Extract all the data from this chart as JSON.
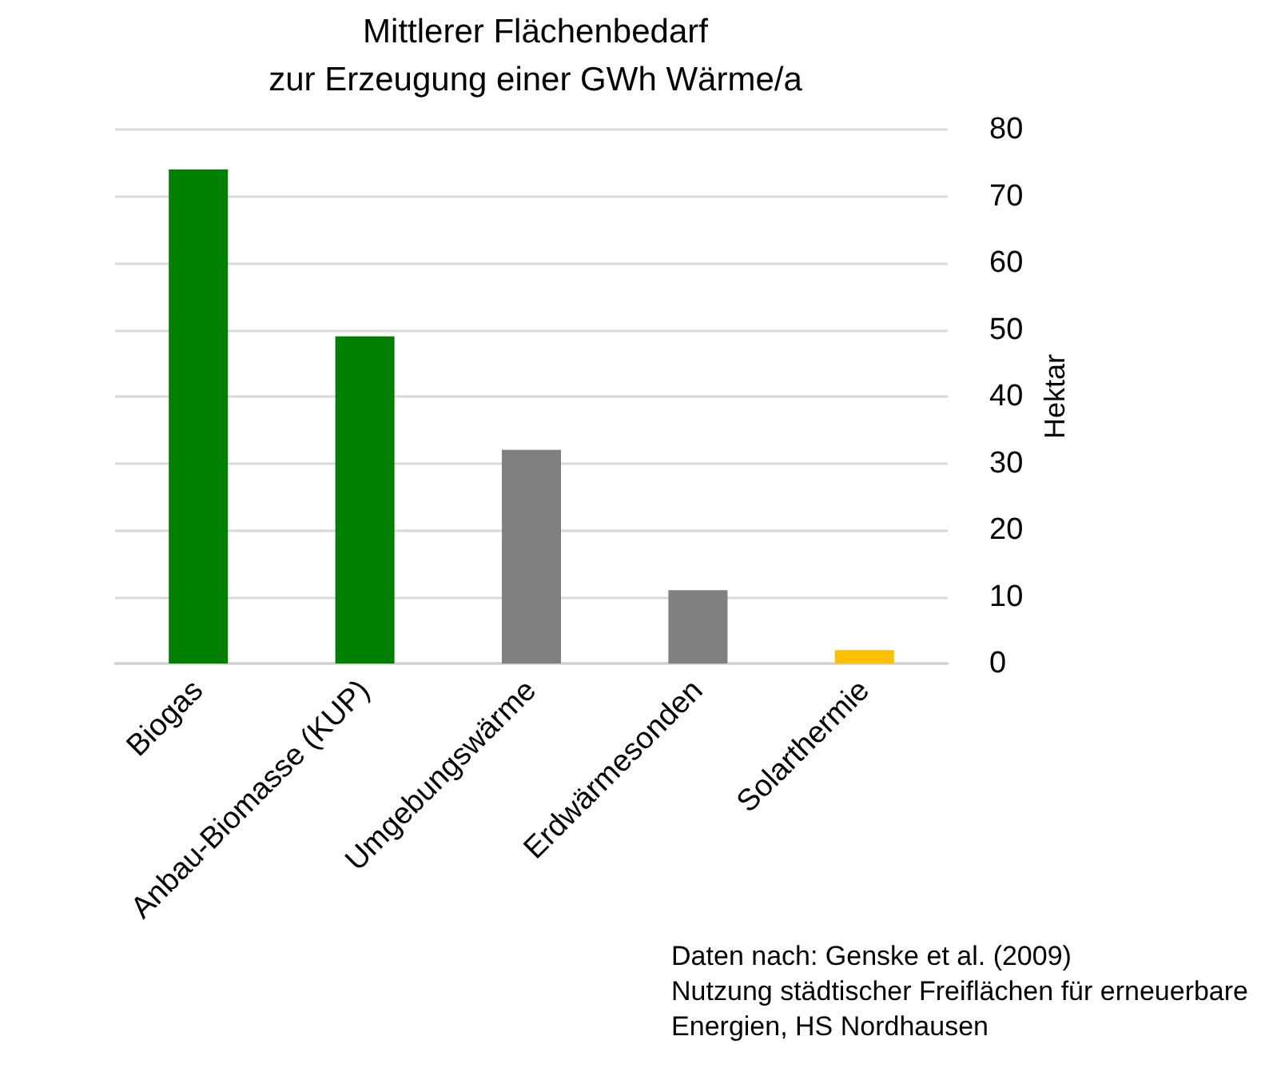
{
  "chart_data": {
    "type": "bar",
    "title": "Mittlerer Flächenbedarf\nzur Erzeugung einer GWh Wärme/a",
    "ylabel": "Hektar",
    "categories": [
      "Biogas",
      "Anbau-Biomasse (KUP)",
      "Umgebungswärme",
      "Erdwärmesonden",
      "Solarthermie"
    ],
    "values": [
      74,
      49,
      32,
      11,
      2
    ],
    "colors": [
      "#008000",
      "#008000",
      "#808080",
      "#808080",
      "#ffc000"
    ],
    "ylim": [
      0,
      80
    ],
    "yticks": [
      0,
      10,
      20,
      30,
      40,
      50,
      60,
      70,
      80
    ],
    "grid": "y",
    "annotations": [
      "Daten nach: Genske et al. (2009)\nNutzung städtischer Freiflächen für erneuerbare\nEnergien, HS Nordhausen"
    ]
  }
}
